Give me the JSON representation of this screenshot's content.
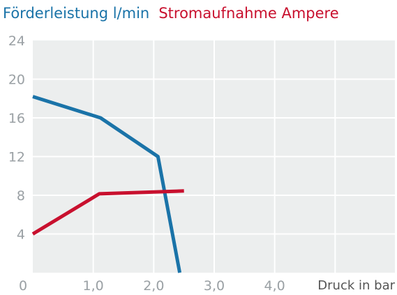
{
  "chart_data": {
    "type": "line",
    "title_parts": [
      {
        "text": "Förderleistung l/min",
        "color": "#1a73a8"
      },
      {
        "text": "Stromaufnahme Ampere",
        "color": "#c8102e"
      }
    ],
    "xlabel": "Druck in bar",
    "xlim": [
      0,
      6
    ],
    "ylim": [
      0,
      24
    ],
    "x_ticks": [
      "0",
      "1,0",
      "2,0",
      "3,0",
      "4,0"
    ],
    "y_ticks": [
      "4",
      "8",
      "12",
      "16",
      "20",
      "24"
    ],
    "grid": true,
    "series": [
      {
        "color": "#1a73a8",
        "points": [
          [
            0,
            18.2
          ],
          [
            1.12,
            16.0
          ],
          [
            2.07,
            12.0
          ],
          [
            2.43,
            0
          ]
        ]
      },
      {
        "color": "#c8102e",
        "points": [
          [
            0,
            4.0
          ],
          [
            1.1,
            8.15
          ],
          [
            2.5,
            8.45
          ]
        ]
      }
    ],
    "colors": {
      "plot_background": "#eceeee",
      "grid": "#ffffff",
      "tick_text": "#9aa0a4",
      "xlabel_text": "#555555"
    }
  }
}
